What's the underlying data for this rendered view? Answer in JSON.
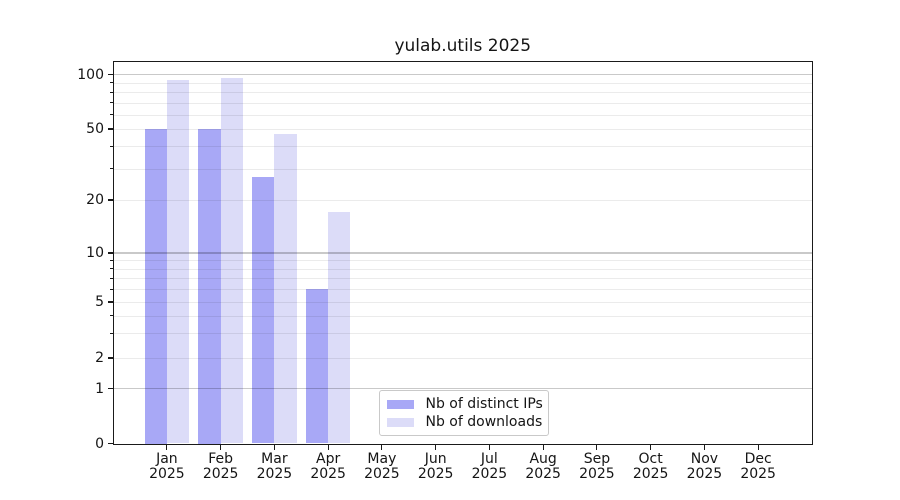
{
  "chart_data": {
    "type": "bar",
    "title": "yulab.utils 2025",
    "yscale": "symlog (log above 1, linear 0-1)",
    "ylim": [
      0,
      118
    ],
    "yticks": [
      0,
      1,
      2,
      5,
      10,
      20,
      50,
      100
    ],
    "minor_gridline_values": [
      2,
      3,
      4,
      5,
      6,
      7,
      8,
      9,
      20,
      30,
      40,
      50,
      60,
      70,
      80,
      90
    ],
    "major_gridline_values": [
      1,
      10,
      100
    ],
    "grid": "horizontal gridlines on, light minor + darker major",
    "legend_position": "lower center",
    "categories": [
      "Jan 2025",
      "Feb 2025",
      "Mar 2025",
      "Apr 2025",
      "May 2025",
      "Jun 2025",
      "Jul 2025",
      "Aug 2025",
      "Sep 2025",
      "Oct 2025",
      "Nov 2025",
      "Dec 2025"
    ],
    "series": [
      {
        "name": "Nb of distinct IPs",
        "color": "#a8a8f6",
        "values": [
          50,
          50,
          27,
          6,
          null,
          null,
          null,
          null,
          null,
          null,
          null,
          null
        ]
      },
      {
        "name": "Nb of downloads",
        "color": "#dcdcf8",
        "values": [
          93,
          96,
          47,
          17,
          null,
          null,
          null,
          null,
          null,
          null,
          null,
          null
        ]
      }
    ]
  },
  "colors": {
    "background": "#ffffff",
    "grid_minor": "#ebebeb",
    "grid_major": "#c9c9c9",
    "axis": "#1a1a1a",
    "text": "#151515",
    "legend_border": "#c9c9c9"
  }
}
